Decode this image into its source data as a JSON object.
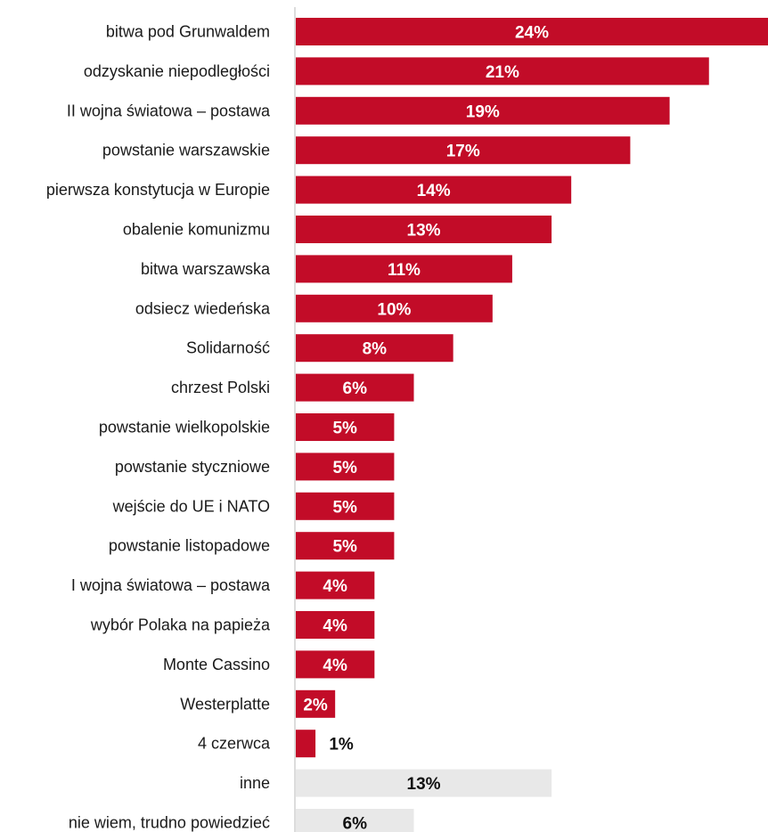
{
  "chart_data": {
    "type": "bar",
    "orientation": "horizontal",
    "categories": [
      "bitwa pod Grunwaldem",
      "odzyskanie niepodległości",
      "II wojna światowa – postawa",
      "powstanie warszawskie",
      "pierwsza konstytucja w Europie",
      "obalenie komunizmu",
      "bitwa warszawska",
      "odsiecz wiedeńska",
      "Solidarność",
      "chrzest Polski",
      "powstanie wielkopolskie",
      "powstanie styczniowe",
      "wejście do UE i NATO",
      "powstanie listopadowe",
      "I wojna światowa – postawa",
      "wybór Polaka na papieża",
      "Monte Cassino",
      "Westerplatte",
      "4 czerwca",
      "inne",
      "nie wiem, trudno powiedzieć"
    ],
    "values": [
      24,
      21,
      19,
      17,
      14,
      13,
      11,
      10,
      8,
      6,
      5,
      5,
      5,
      5,
      4,
      4,
      4,
      2,
      1,
      13,
      6
    ],
    "value_labels": [
      "24%",
      "21%",
      "19%",
      "17%",
      "14%",
      "13%",
      "11%",
      "10%",
      "8%",
      "6%",
      "5%",
      "5%",
      "5%",
      "5%",
      "4%",
      "4%",
      "4%",
      "2%",
      "1%",
      "13%",
      "6%"
    ],
    "groups": [
      "main",
      "main",
      "main",
      "main",
      "main",
      "main",
      "main",
      "main",
      "main",
      "main",
      "main",
      "main",
      "main",
      "main",
      "main",
      "main",
      "main",
      "main",
      "main",
      "other",
      "other"
    ],
    "title": "",
    "xlabel": "",
    "ylabel": "",
    "xlim": [
      0,
      24
    ],
    "grid": false,
    "legend": "none",
    "colors": {
      "main": "#c20c28",
      "other": "#e8e8e8",
      "label_on_main": "#ffffff",
      "label_outside": "#111111",
      "category_text": "#1a1a1a",
      "axis": "#d0d0d0"
    }
  }
}
